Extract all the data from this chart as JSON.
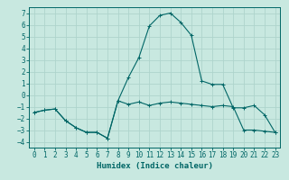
{
  "title": "",
  "xlabel": "Humidex (Indice chaleur)",
  "background_color": "#c8e8e0",
  "grid_color": "#aed4cc",
  "line_color": "#006666",
  "spine_color": "#006666",
  "xlim": [
    -0.5,
    23.5
  ],
  "ylim": [
    -4.5,
    7.5
  ],
  "xticks": [
    0,
    1,
    2,
    3,
    4,
    5,
    6,
    7,
    8,
    9,
    10,
    11,
    12,
    13,
    14,
    15,
    16,
    17,
    18,
    19,
    20,
    21,
    22,
    23
  ],
  "yticks": [
    -4,
    -3,
    -2,
    -1,
    0,
    1,
    2,
    3,
    4,
    5,
    6,
    7
  ],
  "line1_x": [
    0,
    1,
    2,
    3,
    4,
    5,
    6,
    7,
    8,
    9,
    10,
    11,
    12,
    13,
    14,
    15,
    16,
    17,
    18,
    19,
    20,
    21,
    22,
    23
  ],
  "line1_y": [
    -1.5,
    -1.3,
    -1.2,
    -2.2,
    -2.8,
    -3.2,
    -3.2,
    -3.7,
    -0.5,
    -0.8,
    -0.6,
    -0.9,
    -0.7,
    -0.6,
    -0.7,
    -0.8,
    -0.9,
    -1.0,
    -0.9,
    -1.0,
    -3.0,
    -3.0,
    -3.1,
    -3.2
  ],
  "line2_x": [
    0,
    1,
    2,
    3,
    4,
    5,
    6,
    7,
    8,
    9,
    10,
    11,
    12,
    13,
    14,
    15,
    16,
    17,
    18,
    19,
    20,
    21,
    22,
    23
  ],
  "line2_y": [
    -1.5,
    -1.3,
    -1.2,
    -2.2,
    -2.8,
    -3.2,
    -3.2,
    -3.7,
    -0.5,
    1.5,
    3.2,
    5.9,
    6.8,
    7.0,
    6.2,
    5.1,
    1.2,
    0.9,
    0.9,
    -1.1,
    -1.1,
    -0.9,
    -1.7,
    -3.2
  ],
  "tick_fontsize": 5.5,
  "xlabel_fontsize": 6.5,
  "linewidth": 0.8,
  "markersize": 2.5
}
